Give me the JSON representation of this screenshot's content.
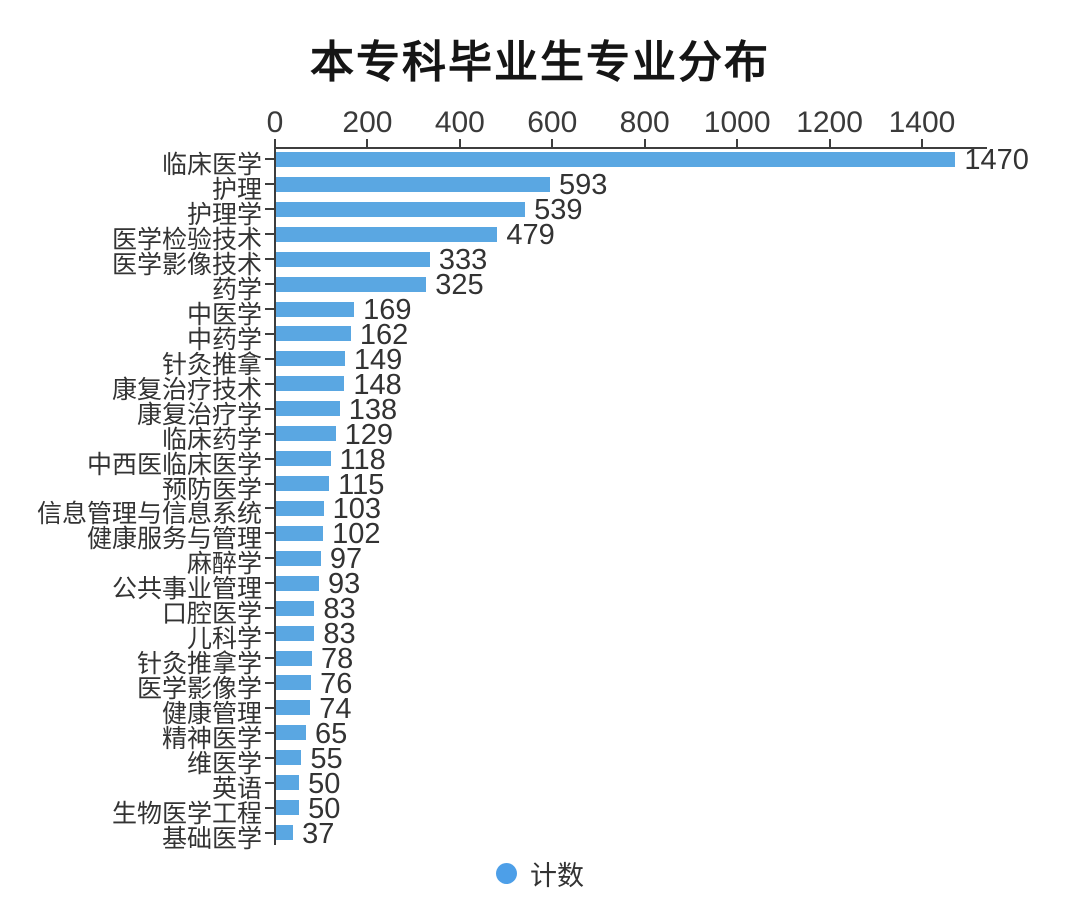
{
  "chart_data": {
    "type": "bar",
    "orientation": "horizontal",
    "title": "本专科毕业生专业分布",
    "xlabel": "",
    "ylabel": "",
    "xlim": [
      0,
      1540
    ],
    "x_ticks": [
      0,
      200,
      400,
      600,
      800,
      1000,
      1200,
      1400
    ],
    "grid": false,
    "bar_color": "#5aa7e2",
    "categories": [
      "临床医学",
      "护理",
      "护理学",
      "医学检验技术",
      "医学影像技术",
      "药学",
      "中医学",
      "中药学",
      "针灸推拿",
      "康复治疗技术",
      "康复治疗学",
      "临床药学",
      "中西医临床医学",
      "预防医学",
      "信息管理与信息系统",
      "健康服务与管理",
      "麻醉学",
      "公共事业管理",
      "口腔医学",
      "儿科学",
      "针灸推拿学",
      "医学影像学",
      "健康管理",
      "精神医学",
      "维医学",
      "英语",
      "生物医学工程",
      "基础医学"
    ],
    "values": [
      1470,
      593,
      539,
      479,
      333,
      325,
      169,
      162,
      149,
      148,
      138,
      129,
      118,
      115,
      103,
      102,
      97,
      93,
      83,
      83,
      78,
      76,
      74,
      65,
      55,
      50,
      50,
      37
    ],
    "value_labels_shown": true,
    "legend": {
      "label": "计数",
      "position": "bottom",
      "marker": "circle-icon",
      "marker_color": "#4d9fe8"
    }
  }
}
